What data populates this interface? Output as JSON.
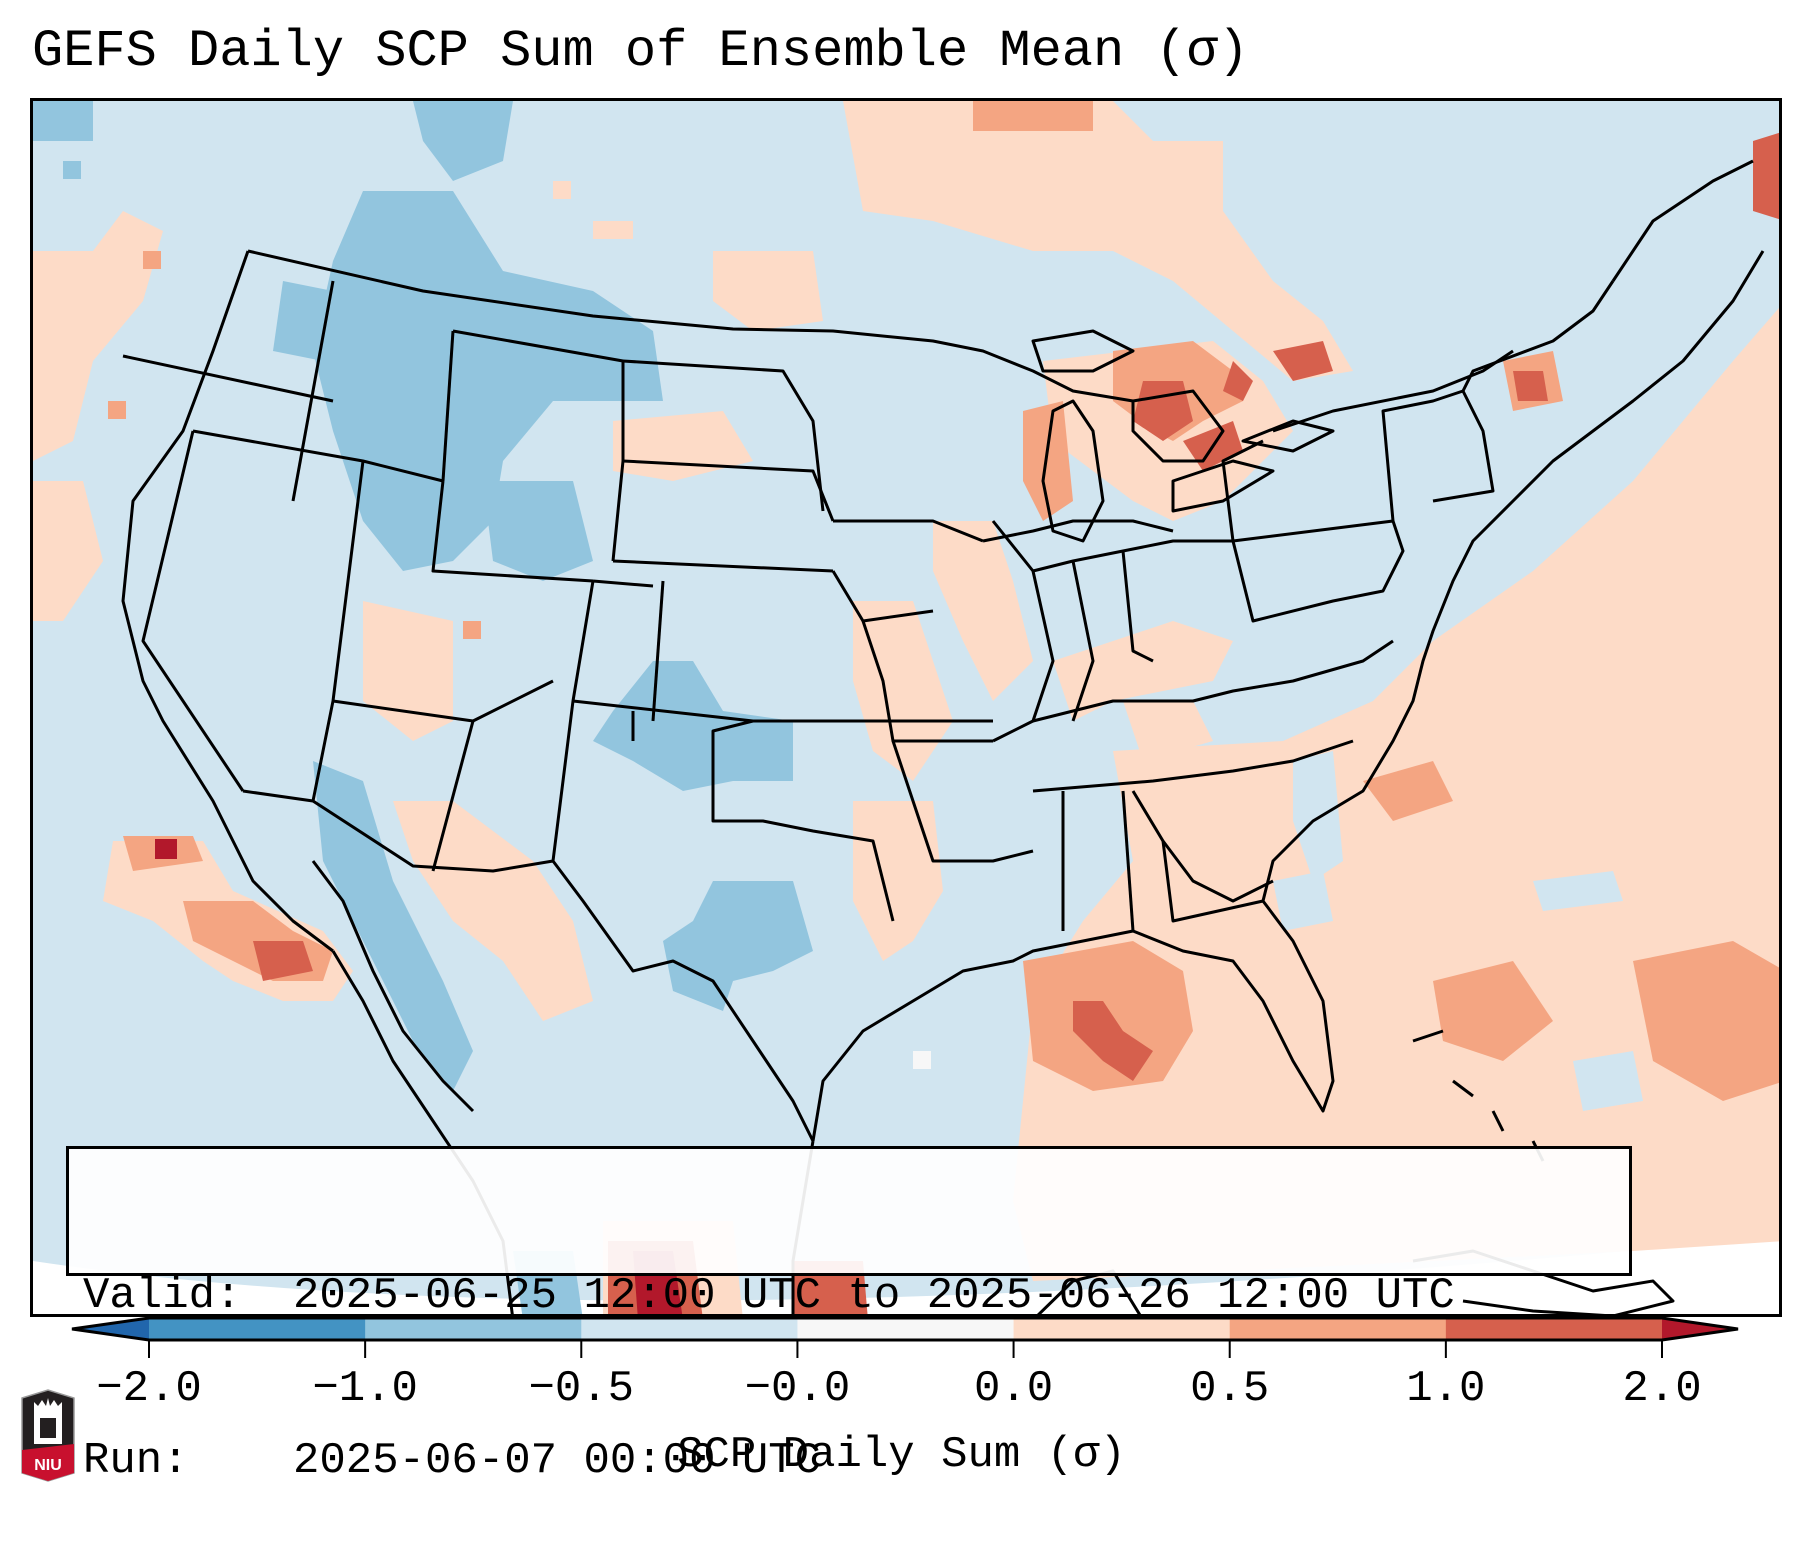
{
  "header": {
    "title": "GEFS Daily SCP Sum of Ensemble Mean (σ)"
  },
  "info_box": {
    "valid_label": "Valid:",
    "valid_value": "2025-06-25 12:00 UTC to 2025-06-26 12:00 UTC",
    "run_label": "Run:",
    "run_value": "2025-06-07 00:00 UTC"
  },
  "colorbar": {
    "label": "SCP Daily Sum (σ)",
    "ticks": [
      "-2.0",
      "-1.0",
      "-0.5",
      "-0.0",
      "0.0",
      "0.5",
      "1.0",
      "2.0"
    ],
    "bins": [
      {
        "range": "< -2.0",
        "color": "#2166ac"
      },
      {
        "range": "-2.0 to -1.0",
        "color": "#4393c3"
      },
      {
        "range": "-1.0 to -0.5",
        "color": "#92c5de"
      },
      {
        "range": "-0.5 to -0.0",
        "color": "#d1e5f0"
      },
      {
        "range": "-0.0 to 0.0",
        "color": "#f7f7f7"
      },
      {
        "range": "0.0 to 0.5",
        "color": "#fddbc7"
      },
      {
        "range": "0.5 to 1.0",
        "color": "#f4a582"
      },
      {
        "range": "1.0 to 2.0",
        "color": "#d6604d"
      },
      {
        "range": "> 2.0",
        "color": "#b2182b"
      }
    ],
    "extend": "both"
  },
  "map": {
    "region": "CONUS",
    "projection": "Lambert Conformal",
    "background_color": "#d1e5f0",
    "outline_color": "#000000"
  },
  "logo": {
    "text": "NIU",
    "colors": {
      "top": "#231f20",
      "bottom": "#c8102e"
    }
  }
}
